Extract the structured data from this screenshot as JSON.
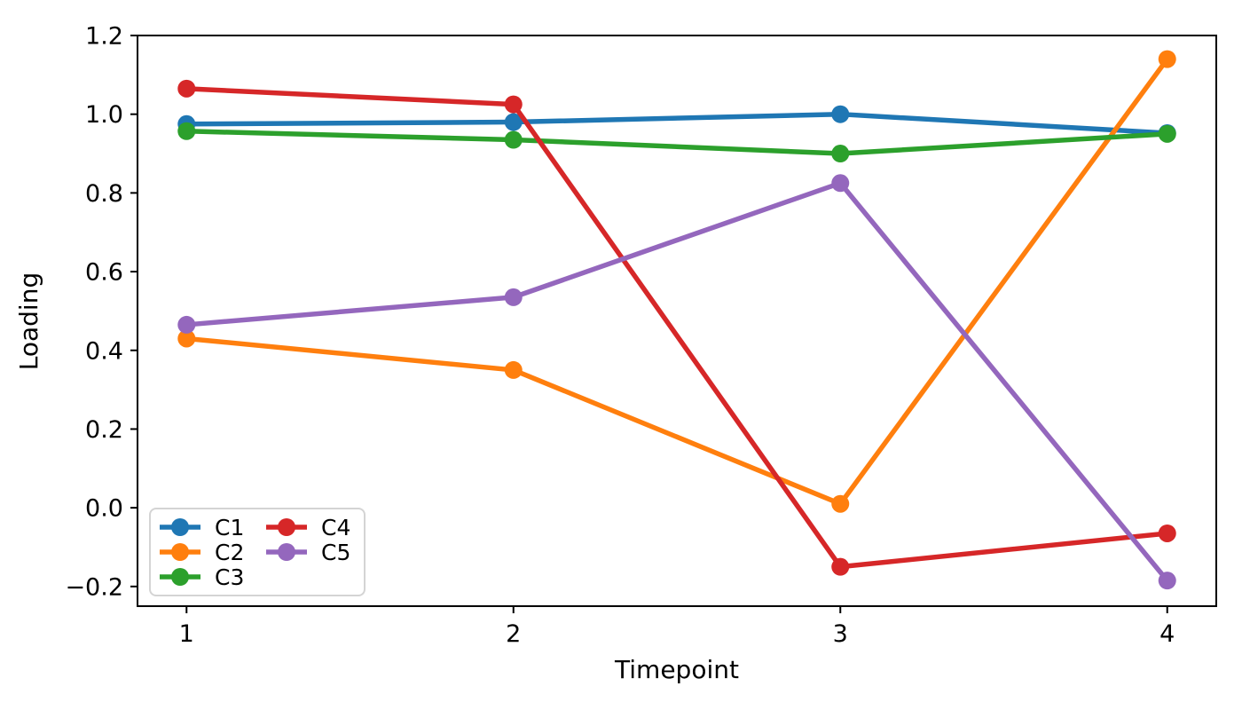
{
  "chart_data": {
    "type": "line",
    "title": "",
    "xlabel": "Timepoint",
    "ylabel": "Loading",
    "x": [
      1,
      2,
      3,
      4
    ],
    "series": [
      {
        "name": "C1",
        "color": "#1f77b4",
        "values": [
          0.975,
          0.98,
          1.0,
          0.952
        ]
      },
      {
        "name": "C2",
        "color": "#ff7f0e",
        "values": [
          0.43,
          0.35,
          0.01,
          1.14
        ]
      },
      {
        "name": "C3",
        "color": "#2ca02c",
        "values": [
          0.957,
          0.935,
          0.9,
          0.95
        ]
      },
      {
        "name": "C4",
        "color": "#d62728",
        "values": [
          1.065,
          1.025,
          -0.15,
          -0.065
        ]
      },
      {
        "name": "C5",
        "color": "#9467bd",
        "values": [
          0.465,
          0.535,
          0.825,
          -0.185
        ]
      }
    ],
    "xlim": [
      0.85,
      4.15
    ],
    "ylim": [
      -0.25,
      1.2
    ],
    "xticks": [
      1,
      2,
      3,
      4
    ],
    "xtick_labels": [
      "1",
      "2",
      "3",
      "4"
    ],
    "yticks": [
      -0.2,
      0.0,
      0.2,
      0.4,
      0.6,
      0.8,
      1.0,
      1.2
    ],
    "ytick_labels": [
      "−0.2",
      "0.0",
      "0.2",
      "0.4",
      "0.6",
      "0.8",
      "1.0",
      "1.2"
    ],
    "grid": false,
    "marker": "circle",
    "line_width": 5.5,
    "marker_radius": 10,
    "axis_color": "#000000",
    "legend": {
      "position": "lower-left",
      "columns": 2,
      "entries": [
        "C1",
        "C2",
        "C3",
        "C4",
        "C5"
      ]
    }
  }
}
